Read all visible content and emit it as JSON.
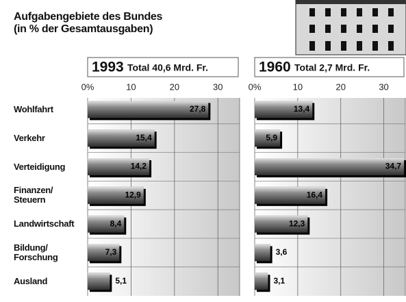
{
  "title": "Aufgabengebiete des Bundes\n(in % der Gesamtausgaben)",
  "chart_data": [
    {
      "type": "bar",
      "orientation": "horizontal",
      "year": "1993",
      "subtitle": "Total 40,6 Mrd. Fr.",
      "categories": [
        "Wohlfahrt",
        "Verkehr",
        "Verteidigung",
        "Finanzen/\nSteuern",
        "Landwirtschaft",
        "Bildung/\nForschung",
        "Ausland"
      ],
      "values": [
        27.8,
        15.4,
        14.2,
        12.9,
        8.4,
        7.3,
        5.1
      ],
      "value_labels": [
        "27,8",
        "15,4",
        "14,2",
        "12,9",
        "8,4",
        "7,3",
        "5,1"
      ],
      "color": "#3a3a3a",
      "xlim": [
        0,
        35
      ],
      "xticks": [
        {
          "value": 0,
          "label": "0%"
        },
        10,
        20,
        30
      ],
      "grid": true
    },
    {
      "type": "bar",
      "orientation": "horizontal",
      "year": "1960",
      "subtitle": "Total 2,7 Mrd. Fr.",
      "values": [
        13.4,
        5.9,
        34.7,
        16.4,
        12.3,
        3.6,
        3.1
      ],
      "value_labels": [
        "13,4",
        "5,9",
        "34,7",
        "16,4",
        "12,3",
        "3,6",
        "3,1"
      ],
      "color": "#3a3a3a",
      "xlim": [
        0,
        35
      ],
      "xticks": [
        {
          "value": 0,
          "label": "0%"
        },
        10,
        20,
        30
      ],
      "grid": true
    }
  ]
}
